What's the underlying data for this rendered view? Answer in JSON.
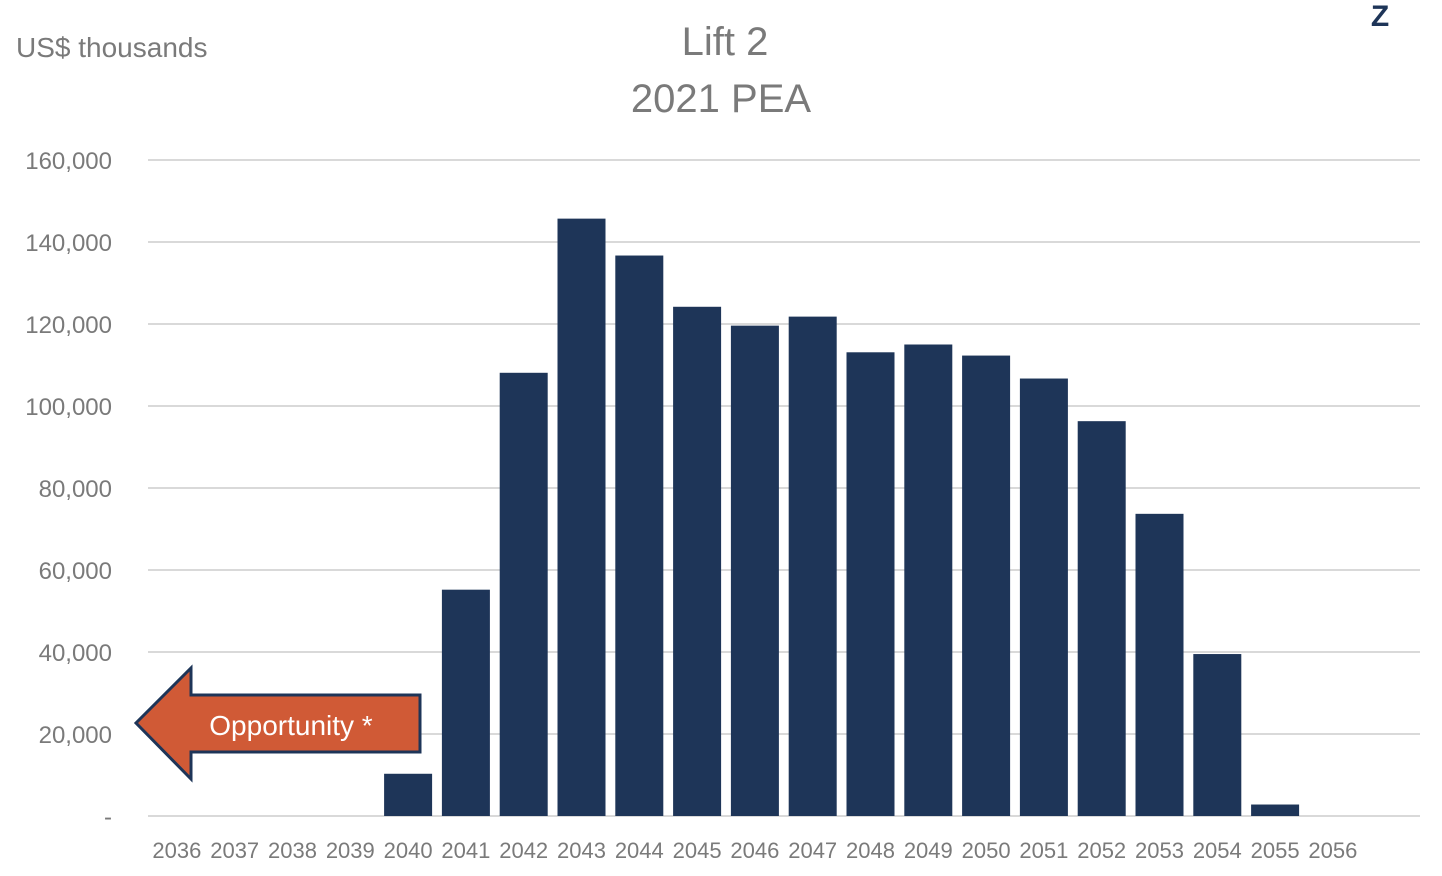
{
  "brand": {
    "logo_text": "Z",
    "color": "#1e3558"
  },
  "colors": {
    "bar": "#1e3558",
    "grid": "#d9d9d9",
    "text": "#7a7a7a",
    "arrow_fill": "#d05a36",
    "arrow_stroke": "#1e3558"
  },
  "annotation": {
    "text": "Opportunity *"
  },
  "chart_data": {
    "type": "bar",
    "title": "Lift 2",
    "subtitle": "2021 PEA",
    "ylabel": "US$ thousands",
    "xlabel": "",
    "ylim": [
      0,
      160000
    ],
    "yticks": [
      0,
      20000,
      40000,
      60000,
      80000,
      100000,
      120000,
      140000,
      160000
    ],
    "ytick_labels": [
      "-",
      "20,000",
      "40,000",
      "60,000",
      "80,000",
      "100,000",
      "120,000",
      "140,000",
      "160,000"
    ],
    "grid": true,
    "categories": [
      "2036",
      "2037",
      "2038",
      "2039",
      "2040",
      "2041",
      "2042",
      "2043",
      "2044",
      "2045",
      "2046",
      "2047",
      "2048",
      "2049",
      "2050",
      "2051",
      "2052",
      "2053",
      "2054",
      "2055",
      "2056"
    ],
    "values": [
      0,
      0,
      0,
      0,
      10300,
      55200,
      108100,
      145700,
      136700,
      124200,
      119600,
      121800,
      113100,
      115000,
      112300,
      106700,
      96300,
      73700,
      39500,
      2800,
      0
    ]
  }
}
